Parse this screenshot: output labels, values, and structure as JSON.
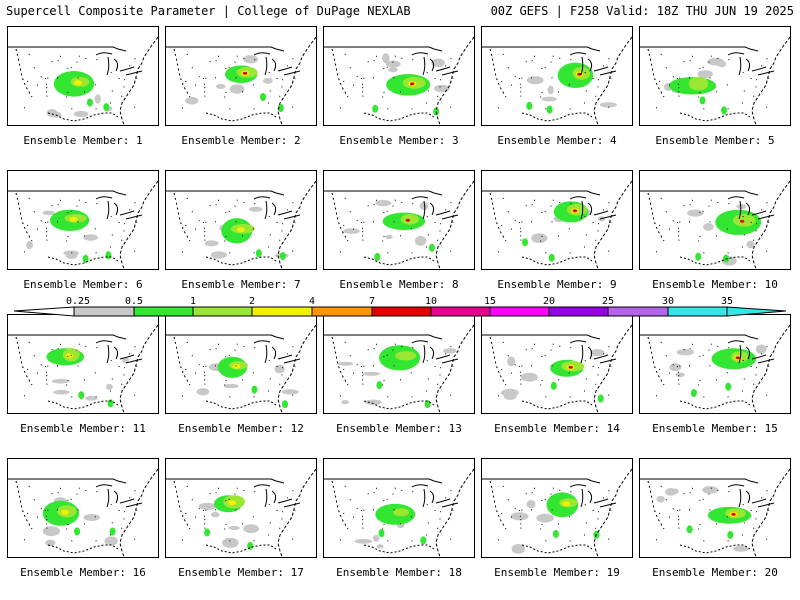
{
  "header": {
    "left": "Supercell Composite Parameter | College of DuPage NEXLAB",
    "right": "00Z GEFS | F258 Valid: 18Z THU JUN 19 2025"
  },
  "colors": {
    "gray": "#c8c8c8",
    "green": "#32e632",
    "lightgreen": "#9be632",
    "yellow": "#f0f000",
    "orange": "#ff9600",
    "red": "#e60000",
    "magenta": "#e6008c",
    "pink": "#ff00ff",
    "purple": "#9600e6",
    "lavender": "#b464e6",
    "cyan": "#32e6e6"
  },
  "colorbar": {
    "ticks": [
      "0.25",
      "0.5",
      "1",
      "2",
      "4",
      "7",
      "10",
      "15",
      "20",
      "25",
      "30",
      "35"
    ],
    "segment_colors": [
      "gray",
      "green",
      "lightgreen",
      "yellow",
      "orange",
      "red",
      "magenta",
      "pink",
      "purple",
      "lavender",
      "cyan"
    ]
  },
  "members": [
    {
      "label": "Ensemble Member: 1"
    },
    {
      "label": "Ensemble Member: 2"
    },
    {
      "label": "Ensemble Member: 3"
    },
    {
      "label": "Ensemble Member: 4"
    },
    {
      "label": "Ensemble Member: 5"
    },
    {
      "label": "Ensemble Member: 6"
    },
    {
      "label": "Ensemble Member: 7"
    },
    {
      "label": "Ensemble Member: 8"
    },
    {
      "label": "Ensemble Member: 9"
    },
    {
      "label": "Ensemble Member: 10"
    },
    {
      "label": "Ensemble Member: 11"
    },
    {
      "label": "Ensemble Member: 12"
    },
    {
      "label": "Ensemble Member: 13"
    },
    {
      "label": "Ensemble Member: 14"
    },
    {
      "label": "Ensemble Member: 15"
    },
    {
      "label": "Ensemble Member: 16"
    },
    {
      "label": "Ensemble Member: 17"
    },
    {
      "label": "Ensemble Member: 18"
    },
    {
      "label": "Ensemble Member: 19"
    },
    {
      "label": "Ensemble Member: 20"
    }
  ]
}
